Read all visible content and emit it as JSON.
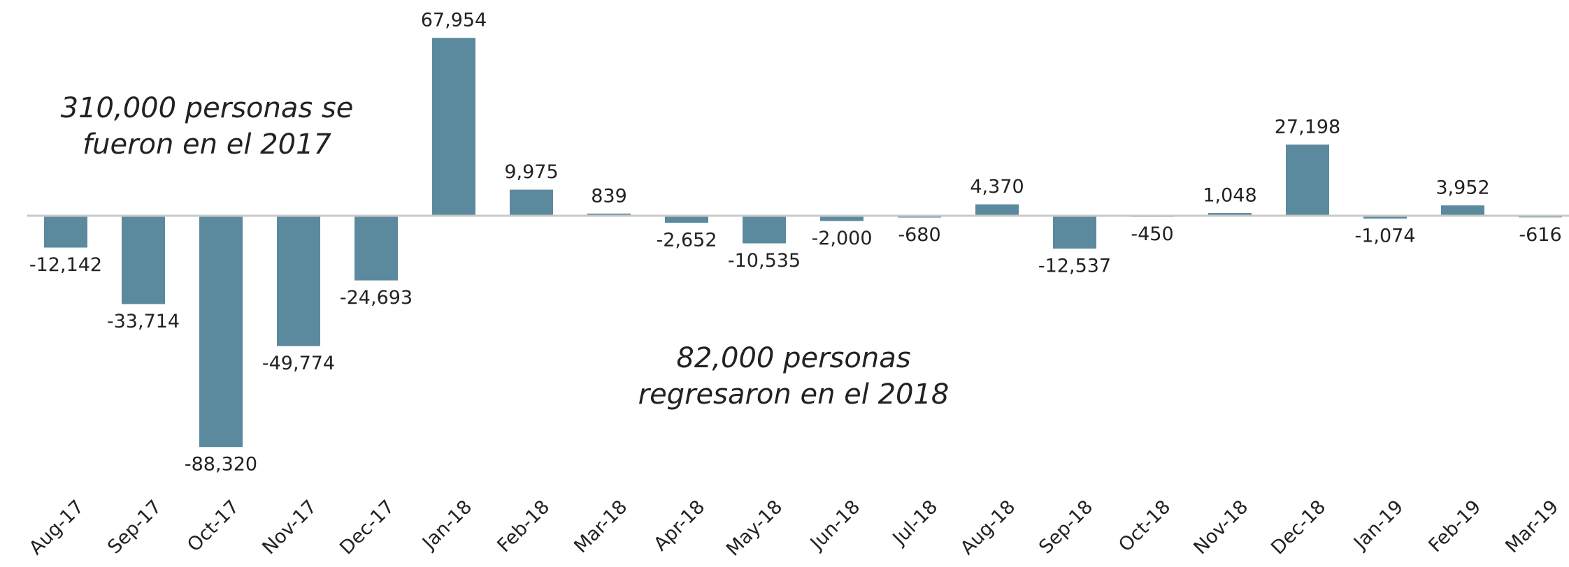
{
  "chart_data": {
    "type": "bar",
    "categories": [
      "Aug-17",
      "Sep-17",
      "Oct-17",
      "Nov-17",
      "Dec-17",
      "Jan-18",
      "Feb-18",
      "Mar-18",
      "Apr-18",
      "May-18",
      "Jun-18",
      "Jul-18",
      "Aug-18",
      "Sep-18",
      "Oct-18",
      "Nov-18",
      "Dec-18",
      "Jan-19",
      "Feb-19",
      "Mar-19"
    ],
    "values": [
      -12142,
      -33714,
      -88320,
      -49774,
      -24693,
      67954,
      9975,
      839,
      -2652,
      -10535,
      -2000,
      -680,
      4370,
      -12537,
      -450,
      1048,
      27198,
      -1074,
      3952,
      -616
    ],
    "value_labels": [
      "-12,142",
      "-33,714",
      "-88,320",
      "-49,774",
      "-24,693",
      "67,954",
      "9,975",
      "839",
      "-2,652",
      "-10,535",
      "-2,000",
      "-680",
      "4,370",
      "-12,537",
      "-450",
      "1,048",
      "27,198",
      "-1,074",
      "3,952",
      "-616"
    ],
    "color": "#5b8a9e",
    "ylim": [
      -100000,
      82000
    ],
    "annotations": [
      {
        "lines": [
          "310,000 personas se",
          "fueron en el 2017"
        ]
      },
      {
        "lines": [
          "82,000 personas",
          "regresaron en el 2018"
        ]
      }
    ]
  }
}
